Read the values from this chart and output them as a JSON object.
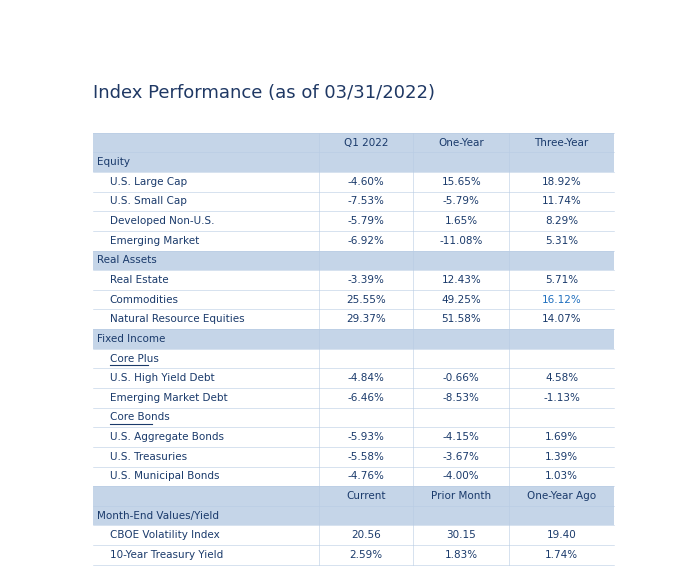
{
  "title": "Index Performance (as of 03/31/2022)",
  "title_color": "#1f3864",
  "title_fontsize": 13,
  "col_header_bg": "#c5d5e8",
  "section_bg": "#c5d5e8",
  "data_row_bg": "#ffffff",
  "alt_row_bg": "#eaf0f8",
  "text_color": "#1a3a6b",
  "highlight_color": "#1f6fbf",
  "header_row1": [
    "",
    "Q1 2022",
    "One-Year",
    "Three-Year"
  ],
  "rows": [
    {
      "label": "Equity",
      "type": "section",
      "values": [
        "",
        "",
        ""
      ]
    },
    {
      "label": "U.S. Large Cap",
      "type": "data",
      "values": [
        "-4.60%",
        "15.65%",
        "18.92%"
      ]
    },
    {
      "label": "U.S. Small Cap",
      "type": "data",
      "values": [
        "-7.53%",
        "-5.79%",
        "11.74%"
      ]
    },
    {
      "label": "Developed Non-U.S.",
      "type": "data",
      "values": [
        "-5.79%",
        "1.65%",
        "8.29%"
      ]
    },
    {
      "label": "Emerging Market",
      "type": "data",
      "values": [
        "-6.92%",
        "-11.08%",
        "5.31%"
      ]
    },
    {
      "label": "Real Assets",
      "type": "section",
      "values": [
        "",
        "",
        ""
      ]
    },
    {
      "label": "Real Estate",
      "type": "data",
      "values": [
        "-3.39%",
        "12.43%",
        "5.71%"
      ]
    },
    {
      "label": "Commodities",
      "type": "data",
      "values": [
        "25.55%",
        "49.25%",
        "16.12%"
      ],
      "highlight_col": 2
    },
    {
      "label": "Natural Resource Equities",
      "type": "data",
      "values": [
        "29.37%",
        "51.58%",
        "14.07%"
      ]
    },
    {
      "label": "Fixed Income",
      "type": "section",
      "values": [
        "",
        "",
        ""
      ]
    },
    {
      "label": "Core Plus",
      "type": "subheader",
      "values": [
        "",
        "",
        ""
      ]
    },
    {
      "label": "U.S. High Yield Debt",
      "type": "data",
      "values": [
        "-4.84%",
        "-0.66%",
        "4.58%"
      ]
    },
    {
      "label": "Emerging Market Debt",
      "type": "data",
      "values": [
        "-6.46%",
        "-8.53%",
        "-1.13%"
      ]
    },
    {
      "label": "Core Bonds",
      "type": "subheader",
      "values": [
        "",
        "",
        ""
      ]
    },
    {
      "label": "U.S. Aggregate Bonds",
      "type": "data",
      "values": [
        "-5.93%",
        "-4.15%",
        "1.69%"
      ]
    },
    {
      "label": "U.S. Treasuries",
      "type": "data",
      "values": [
        "-5.58%",
        "-3.67%",
        "1.39%"
      ]
    },
    {
      "label": "U.S. Municipal Bonds",
      "type": "data",
      "values": [
        "-4.76%",
        "-4.00%",
        "1.03%"
      ]
    },
    {
      "label": "",
      "type": "header2",
      "values": [
        "Current",
        "Prior Month",
        "One-Year Ago"
      ]
    },
    {
      "label": "Month-End Values/Yield",
      "type": "section",
      "values": [
        "",
        "",
        ""
      ]
    },
    {
      "label": "CBOE Volatility Index",
      "type": "data",
      "values": [
        "20.56",
        "30.15",
        "19.40"
      ]
    },
    {
      "label": "10-Year Treasury Yield",
      "type": "data",
      "values": [
        "2.59%",
        "1.83%",
        "1.74%"
      ]
    }
  ],
  "figsize": [
    6.89,
    5.73
  ],
  "dpi": 100
}
